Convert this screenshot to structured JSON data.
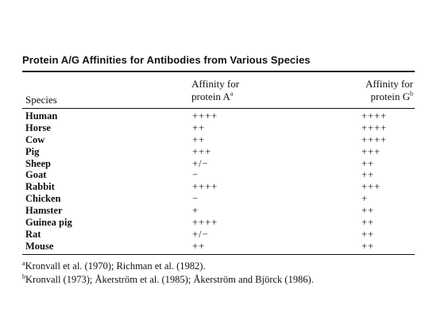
{
  "title": "Protein A/G Affinities for Antibodies from Various Species",
  "headers": {
    "species": "Species",
    "protein_a_line1": "Affinity for",
    "protein_a_line2": "protein A",
    "protein_a_sup": "a",
    "protein_g_line1": "Affinity for",
    "protein_g_line2": "protein G",
    "protein_g_sup": "b"
  },
  "rows": [
    {
      "species": "Human",
      "protein_a": "++++",
      "protein_g": "++++"
    },
    {
      "species": "Horse",
      "protein_a": "++",
      "protein_g": "++++"
    },
    {
      "species": "Cow",
      "protein_a": "++",
      "protein_g": "++++"
    },
    {
      "species": "Pig",
      "protein_a": "+++",
      "protein_g": "+++"
    },
    {
      "species": "Sheep",
      "protein_a": "+/−",
      "protein_g": "++"
    },
    {
      "species": "Goat",
      "protein_a": "−",
      "protein_g": "++"
    },
    {
      "species": "Rabbit",
      "protein_a": "++++",
      "protein_g": "+++"
    },
    {
      "species": "Chicken",
      "protein_a": "−",
      "protein_g": "+"
    },
    {
      "species": "Hamster",
      "protein_a": "+",
      "protein_g": "++"
    },
    {
      "species": "Guinea pig",
      "protein_a": "++++",
      "protein_g": "++"
    },
    {
      "species": "Rat",
      "protein_a": "+/−",
      "protein_g": "++"
    },
    {
      "species": "Mouse",
      "protein_a": "++",
      "protein_g": "++"
    }
  ],
  "footnotes": {
    "a_marker": "a",
    "a_text": "Kronvall et al. (1970); Richman et al. (1982).",
    "b_marker": "b",
    "b_text": "Kronvall (1973); Åkerström et al. (1985); Åkerström and Björck (1986)."
  }
}
